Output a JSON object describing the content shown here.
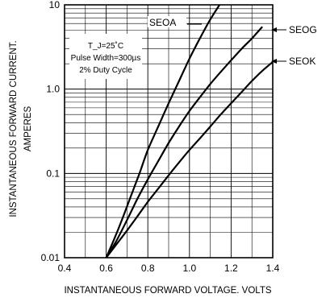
{
  "chart_data": {
    "type": "line",
    "xlabel": "INSTANTANEOUS  FORWARD  VOLTAGE.  VOLTS",
    "ylabel_line1": "INSTANTANEOUS  FORWARD  CURRENT.",
    "ylabel_line2": "AMPERES",
    "x_scale": "linear",
    "y_scale": "log",
    "xlim": [
      0.4,
      1.4
    ],
    "ylim": [
      0.01,
      10
    ],
    "x_ticks": [
      {
        "value": 0.4,
        "label": "0.4"
      },
      {
        "value": 0.6,
        "label": "0.6"
      },
      {
        "value": 0.8,
        "label": "0.8"
      },
      {
        "value": 1.0,
        "label": "1.0"
      },
      {
        "value": 1.2,
        "label": "1.2"
      },
      {
        "value": 1.4,
        "label": "1.4"
      }
    ],
    "y_ticks": [
      {
        "value": 0.01,
        "label": "0.01"
      },
      {
        "value": 0.1,
        "label": "0.1"
      },
      {
        "value": 1.0,
        "label": "1.0"
      },
      {
        "value": 10,
        "label": "10"
      }
    ],
    "grid": true,
    "conditions": [
      "T_J=25˚C",
      "Pulse Width=300µs",
      "2% Duty Cycle"
    ],
    "series": [
      {
        "name": "SEOA",
        "x": [
          0.6,
          0.64,
          0.68,
          0.72,
          0.76,
          0.8,
          0.85,
          0.9,
          0.95,
          1.0,
          1.05,
          1.1,
          1.15
        ],
        "y": [
          0.01,
          0.017,
          0.03,
          0.055,
          0.1,
          0.19,
          0.36,
          0.68,
          1.25,
          2.3,
          4.0,
          6.7,
          10.5
        ]
      },
      {
        "name": "SEOG",
        "x": [
          0.6,
          0.65,
          0.7,
          0.75,
          0.8,
          0.85,
          0.9,
          0.95,
          1.0,
          1.05,
          1.1,
          1.15,
          1.2,
          1.25,
          1.3,
          1.35
        ],
        "y": [
          0.01,
          0.016,
          0.028,
          0.05,
          0.085,
          0.14,
          0.23,
          0.36,
          0.55,
          0.8,
          1.15,
          1.6,
          2.2,
          3.0,
          4.0,
          5.5
        ]
      },
      {
        "name": "SEOK",
        "x": [
          0.6,
          0.65,
          0.7,
          0.75,
          0.8,
          0.85,
          0.9,
          0.95,
          1.0,
          1.05,
          1.1,
          1.15,
          1.2,
          1.25,
          1.3,
          1.35,
          1.4
        ],
        "y": [
          0.01,
          0.0145,
          0.021,
          0.031,
          0.046,
          0.066,
          0.095,
          0.135,
          0.19,
          0.26,
          0.36,
          0.5,
          0.68,
          0.92,
          1.25,
          1.65,
          2.1
        ]
      }
    ]
  }
}
